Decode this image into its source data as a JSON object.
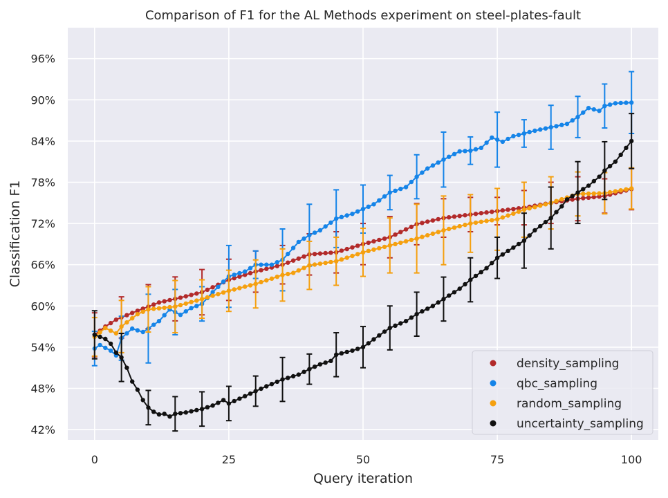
{
  "chart_data": {
    "type": "line",
    "title": "Comparison of F1 for the AL Methods experiment on steel-plates-fault",
    "xlabel": "Query iteration",
    "ylabel": "Classification F1",
    "xlim": [
      -5,
      105
    ],
    "ylim": [
      40.5,
      100.5
    ],
    "x_ticks": [
      0,
      25,
      50,
      75,
      100
    ],
    "y_ticks": [
      42,
      48,
      54,
      60,
      66,
      72,
      78,
      84,
      90,
      96
    ],
    "y_tick_suffix": "%",
    "grid": true,
    "background": "#eaeaf2",
    "legend_position": "lower-right",
    "series": [
      {
        "name": "density_sampling",
        "color": "#b22a2a",
        "anchors": [
          [
            0,
            55.8
          ],
          [
            2,
            57.0
          ],
          [
            4,
            58.0
          ],
          [
            8,
            59.3
          ],
          [
            12,
            60.5
          ],
          [
            16,
            61.2
          ],
          [
            20,
            62.0
          ],
          [
            25,
            63.8
          ],
          [
            30,
            65.0
          ],
          [
            35,
            66.0
          ],
          [
            40,
            67.5
          ],
          [
            45,
            67.8
          ],
          [
            50,
            69.0
          ],
          [
            55,
            70.0
          ],
          [
            60,
            71.9
          ],
          [
            65,
            72.8
          ],
          [
            70,
            73.3
          ],
          [
            75,
            73.8
          ],
          [
            80,
            74.3
          ],
          [
            85,
            75.0
          ],
          [
            90,
            75.6
          ],
          [
            95,
            76.0
          ],
          [
            100,
            77.0
          ]
        ],
        "errors": [
          [
            0,
            3.2
          ],
          [
            5,
            3.0
          ],
          [
            10,
            3.2
          ],
          [
            15,
            3.2
          ],
          [
            20,
            3.3
          ],
          [
            25,
            3.0
          ],
          [
            30,
            3.0
          ],
          [
            35,
            2.8
          ],
          [
            40,
            3.0
          ],
          [
            45,
            3.0
          ],
          [
            50,
            3.0
          ],
          [
            55,
            3.0
          ],
          [
            60,
            3.0
          ],
          [
            65,
            2.8
          ],
          [
            70,
            2.5
          ],
          [
            75,
            2.0
          ],
          [
            80,
            2.5
          ],
          [
            85,
            3.0
          ],
          [
            90,
            3.2
          ],
          [
            95,
            2.5
          ],
          [
            100,
            3.0
          ]
        ]
      },
      {
        "name": "qbc_sampling",
        "color": "#1584e8",
        "anchors": [
          [
            0,
            53.8
          ],
          [
            1,
            54.3
          ],
          [
            3,
            53.5
          ],
          [
            4,
            52.8
          ],
          [
            5,
            55.3
          ],
          [
            7,
            56.7
          ],
          [
            9,
            56.2
          ],
          [
            10,
            56.7
          ],
          [
            12,
            57.8
          ],
          [
            14,
            59.5
          ],
          [
            16,
            58.7
          ],
          [
            18,
            59.7
          ],
          [
            20,
            60.3
          ],
          [
            22,
            62.0
          ],
          [
            25,
            64.3
          ],
          [
            28,
            65.0
          ],
          [
            30,
            66.0
          ],
          [
            33,
            66.0
          ],
          [
            35,
            66.7
          ],
          [
            38,
            69.3
          ],
          [
            40,
            70.3
          ],
          [
            42,
            71.0
          ],
          [
            45,
            72.7
          ],
          [
            48,
            73.4
          ],
          [
            50,
            74.1
          ],
          [
            52,
            74.8
          ],
          [
            55,
            76.5
          ],
          [
            58,
            77.3
          ],
          [
            60,
            78.8
          ],
          [
            62,
            80.0
          ],
          [
            65,
            81.3
          ],
          [
            68,
            82.5
          ],
          [
            70,
            82.6
          ],
          [
            72,
            83.0
          ],
          [
            74,
            84.5
          ],
          [
            75,
            84.2
          ],
          [
            76,
            83.9
          ],
          [
            78,
            84.7
          ],
          [
            80,
            85.1
          ],
          [
            82,
            85.5
          ],
          [
            85,
            86.0
          ],
          [
            88,
            86.5
          ],
          [
            90,
            87.5
          ],
          [
            92,
            88.8
          ],
          [
            94,
            88.4
          ],
          [
            95,
            89.1
          ],
          [
            97,
            89.5
          ],
          [
            100,
            89.6
          ]
        ],
        "errors": [
          [
            0,
            2.5
          ],
          [
            5,
            3.2
          ],
          [
            10,
            5.0
          ],
          [
            15,
            3.3
          ],
          [
            20,
            2.5
          ],
          [
            25,
            4.5
          ],
          [
            30,
            2.0
          ],
          [
            35,
            4.5
          ],
          [
            40,
            4.5
          ],
          [
            45,
            4.2
          ],
          [
            50,
            3.5
          ],
          [
            55,
            2.5
          ],
          [
            60,
            3.2
          ],
          [
            65,
            4.0
          ],
          [
            70,
            2.0
          ],
          [
            75,
            4.0
          ],
          [
            80,
            2.0
          ],
          [
            85,
            3.2
          ],
          [
            90,
            3.0
          ],
          [
            95,
            3.2
          ],
          [
            100,
            4.5
          ]
        ]
      },
      {
        "name": "random_sampling",
        "color": "#f5a00f",
        "anchors": [
          [
            0,
            55.5
          ],
          [
            2,
            56.8
          ],
          [
            4,
            56.0
          ],
          [
            5,
            57.0
          ],
          [
            8,
            58.8
          ],
          [
            10,
            59.5
          ],
          [
            15,
            59.9
          ],
          [
            20,
            61.0
          ],
          [
            25,
            62.2
          ],
          [
            30,
            63.2
          ],
          [
            35,
            64.5
          ],
          [
            37,
            64.8
          ],
          [
            40,
            65.9
          ],
          [
            45,
            66.5
          ],
          [
            50,
            67.8
          ],
          [
            55,
            68.8
          ],
          [
            60,
            69.8
          ],
          [
            65,
            71.0
          ],
          [
            70,
            72.0
          ],
          [
            75,
            72.6
          ],
          [
            80,
            74.0
          ],
          [
            85,
            75.0
          ],
          [
            90,
            76.3
          ],
          [
            95,
            76.4
          ],
          [
            100,
            77.1
          ]
        ],
        "errors": [
          [
            0,
            2.8
          ],
          [
            5,
            3.8
          ],
          [
            10,
            3.3
          ],
          [
            15,
            3.8
          ],
          [
            20,
            2.8
          ],
          [
            25,
            3.0
          ],
          [
            30,
            3.5
          ],
          [
            35,
            3.8
          ],
          [
            40,
            3.5
          ],
          [
            45,
            3.5
          ],
          [
            50,
            3.5
          ],
          [
            55,
            4.0
          ],
          [
            60,
            5.0
          ],
          [
            65,
            5.0
          ],
          [
            70,
            4.2
          ],
          [
            75,
            4.5
          ],
          [
            80,
            4.0
          ],
          [
            85,
            3.8
          ],
          [
            90,
            3.2
          ],
          [
            95,
            3.0
          ],
          [
            100,
            3.0
          ]
        ]
      },
      {
        "name": "uncertainty_sampling",
        "color": "#111111",
        "anchors": [
          [
            0,
            55.8
          ],
          [
            2,
            55.2
          ],
          [
            3,
            54.5
          ],
          [
            4,
            53.2
          ],
          [
            5,
            52.5
          ],
          [
            6,
            51.0
          ],
          [
            7,
            49.0
          ],
          [
            8,
            47.8
          ],
          [
            9,
            46.3
          ],
          [
            10,
            45.2
          ],
          [
            11,
            44.6
          ],
          [
            12,
            44.2
          ],
          [
            13,
            44.3
          ],
          [
            14,
            43.9
          ],
          [
            15,
            44.3
          ],
          [
            17,
            44.5
          ],
          [
            20,
            45.0
          ],
          [
            22,
            45.5
          ],
          [
            24,
            46.3
          ],
          [
            25,
            45.8
          ],
          [
            27,
            46.5
          ],
          [
            30,
            47.6
          ],
          [
            32,
            48.3
          ],
          [
            35,
            49.3
          ],
          [
            38,
            50.0
          ],
          [
            40,
            50.8
          ],
          [
            42,
            51.5
          ],
          [
            44,
            52.0
          ],
          [
            45,
            52.9
          ],
          [
            48,
            53.5
          ],
          [
            50,
            54.0
          ],
          [
            53,
            55.7
          ],
          [
            55,
            56.8
          ],
          [
            58,
            57.8
          ],
          [
            60,
            58.8
          ],
          [
            63,
            60.0
          ],
          [
            65,
            61.0
          ],
          [
            68,
            62.5
          ],
          [
            70,
            63.8
          ],
          [
            73,
            65.5
          ],
          [
            75,
            67.0
          ],
          [
            77,
            68.0
          ],
          [
            80,
            69.5
          ],
          [
            82,
            71.0
          ],
          [
            85,
            72.8
          ],
          [
            87,
            74.5
          ],
          [
            88,
            75.5
          ],
          [
            90,
            76.5
          ],
          [
            92,
            77.5
          ],
          [
            94,
            78.8
          ],
          [
            95,
            79.7
          ],
          [
            97,
            81.0
          ],
          [
            100,
            84.0
          ]
        ],
        "errors": [
          [
            0,
            3.5
          ],
          [
            5,
            3.5
          ],
          [
            10,
            2.5
          ],
          [
            15,
            2.5
          ],
          [
            20,
            2.5
          ],
          [
            25,
            2.5
          ],
          [
            30,
            2.2
          ],
          [
            35,
            3.2
          ],
          [
            40,
            2.2
          ],
          [
            45,
            3.2
          ],
          [
            50,
            3.0
          ],
          [
            55,
            3.2
          ],
          [
            60,
            3.2
          ],
          [
            65,
            3.2
          ],
          [
            70,
            3.2
          ],
          [
            75,
            3.0
          ],
          [
            80,
            4.0
          ],
          [
            85,
            4.5
          ],
          [
            90,
            4.5
          ],
          [
            95,
            4.2
          ],
          [
            100,
            4.0
          ]
        ]
      }
    ]
  }
}
